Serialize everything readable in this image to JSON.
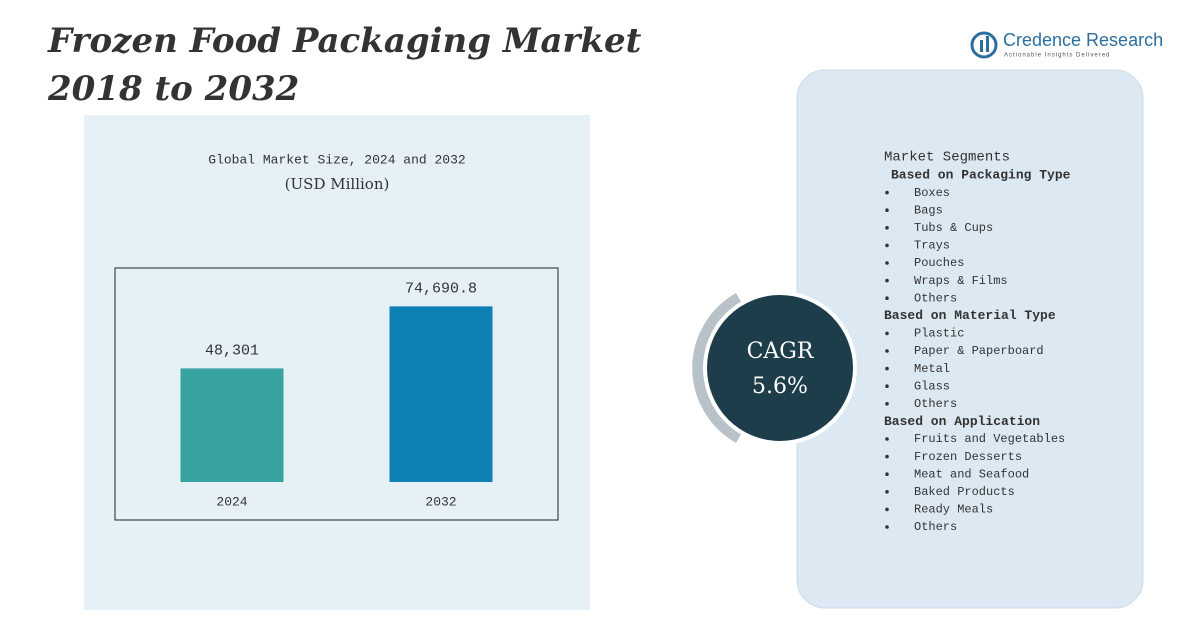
{
  "header": {
    "title_line1": "Frozen Food Packaging Market",
    "title_line2": "2018 to 2032",
    "brand": "Credence Research",
    "tagline": "Actionable Insights Delivered"
  },
  "chart_data": {
    "type": "bar",
    "title": "Global Market Size, 2024 and 2032",
    "subtitle": "(USD Million)",
    "categories": [
      "2024",
      "2032"
    ],
    "values": [
      48301,
      74690.8
    ],
    "value_labels": [
      "48,301",
      "74,690.8"
    ],
    "colors": [
      "#36a3a0",
      "#0f80b3"
    ],
    "ylim": [
      0,
      91000
    ]
  },
  "cagr": {
    "label": "CAGR",
    "value": "5.6%"
  },
  "segments": {
    "title": "Market Segments",
    "groups": [
      {
        "heading": "Based on Packaging Type",
        "items": [
          "Boxes",
          "Bags",
          "Tubs & Cups",
          "Trays",
          "Pouches",
          "Wraps & Films",
          "Others"
        ]
      },
      {
        "heading": "Based on Material Type",
        "items": [
          "Plastic",
          "Paper & Paperboard",
          "Metal",
          "Glass",
          "Others"
        ]
      },
      {
        "heading": "Based on Application",
        "items": [
          "Fruits and Vegetables",
          "Frozen Desserts",
          "Meat and Seafood",
          "Baked Products",
          "Ready Meals",
          "Others"
        ]
      }
    ]
  }
}
